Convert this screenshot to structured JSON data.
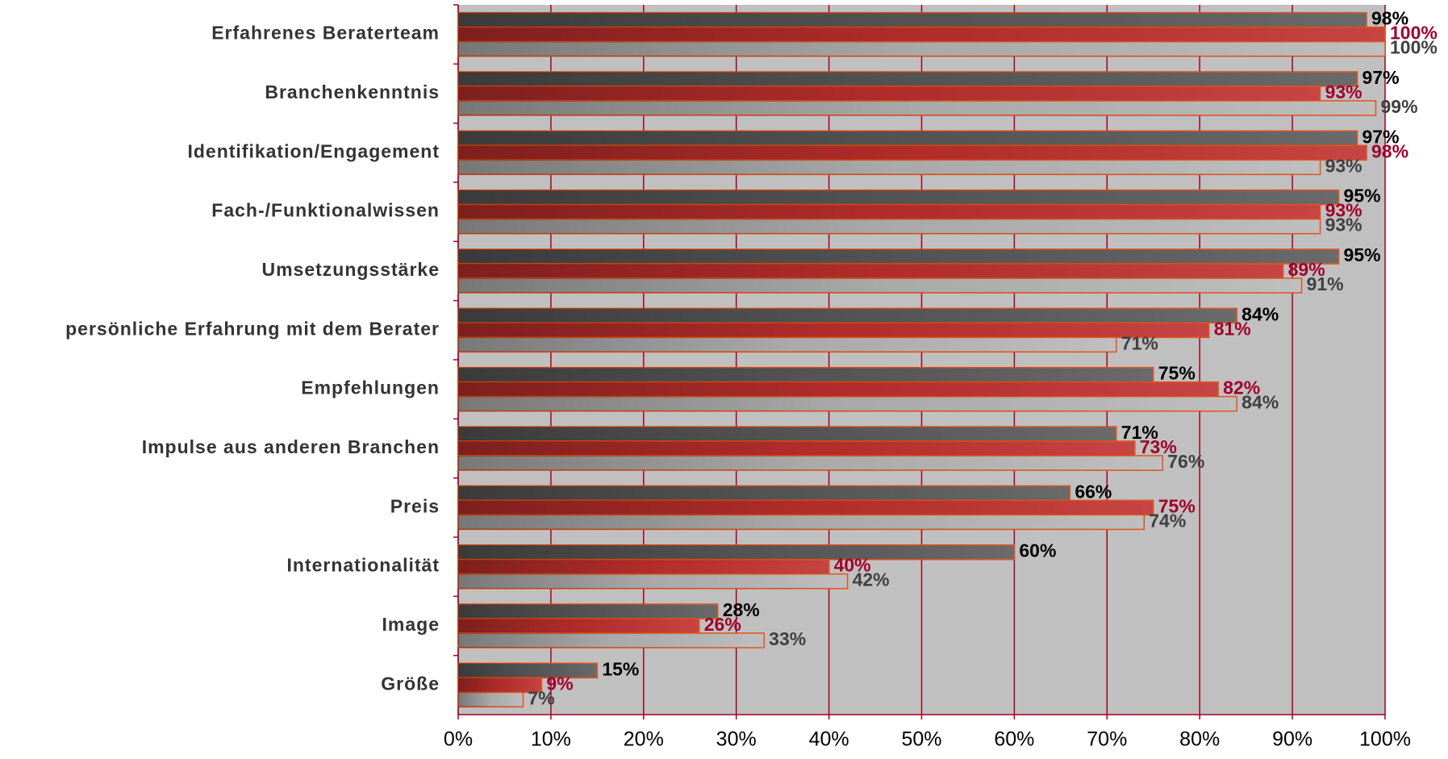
{
  "chart_data": {
    "type": "hbar",
    "categories": [
      "Erfahrenes Beraterteam",
      "Branchenkenntnis",
      "Identifikation/Engagement",
      "Fach-/Funktionalwissen",
      "Umsetzungsstärke",
      "persönliche Erfahrung mit dem Berater",
      "Empfehlungen",
      "Impulse aus anderen Branchen",
      "Preis",
      "Internationalität",
      "Image",
      "Größe"
    ],
    "series": [
      {
        "color": "#5a5a5a",
        "label_color": "#000000",
        "values": [
          98,
          97,
          97,
          95,
          95,
          84,
          75,
          71,
          66,
          60,
          28,
          15
        ],
        "value_labels": [
          "98%",
          "97%",
          "97%",
          "95%",
          "95%",
          "84%",
          "75%",
          "71%",
          "66%",
          "60%",
          "28%",
          "15%"
        ]
      },
      {
        "color": "#c0302e",
        "label_color": "#a0002a",
        "values": [
          100,
          93,
          98,
          93,
          89,
          81,
          82,
          73,
          75,
          40,
          26,
          9
        ],
        "value_labels": [
          "100%",
          "93%",
          "98%",
          "93%",
          "89%",
          "81%",
          "82%",
          "73%",
          "75%",
          "40%",
          "26%",
          "9%"
        ]
      },
      {
        "color": "#b8b8b8",
        "label_color": "#404040",
        "values": [
          100,
          99,
          93,
          93,
          91,
          71,
          84,
          76,
          74,
          42,
          33,
          7
        ],
        "value_labels": [
          "100%",
          "99%",
          "93%",
          "93%",
          "91%",
          "71%",
          "84%",
          "76%",
          "74%",
          "42%",
          "33%",
          "7%"
        ]
      }
    ],
    "xlim": [
      0,
      100
    ],
    "xticks": [
      {
        "value": 0,
        "label": "0%"
      },
      {
        "value": 10,
        "label": "10%"
      },
      {
        "value": 20,
        "label": "20%"
      },
      {
        "value": 30,
        "label": "30%"
      },
      {
        "value": 40,
        "label": "40%"
      },
      {
        "value": 50,
        "label": "50%"
      },
      {
        "value": 60,
        "label": "60%"
      },
      {
        "value": 70,
        "label": "70%"
      },
      {
        "value": 80,
        "label": "80%"
      },
      {
        "value": 90,
        "label": "90%"
      },
      {
        "value": 100,
        "label": "100%"
      }
    ],
    "grid": true
  }
}
